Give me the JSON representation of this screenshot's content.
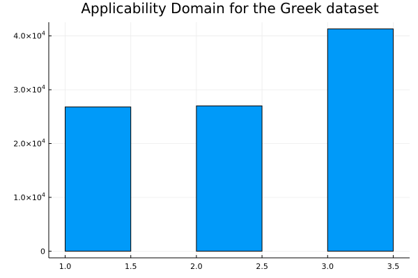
{
  "chart_data": {
    "type": "bar",
    "title": "Applicability Domain for the Greek dataset",
    "xlabel": "",
    "ylabel": "",
    "bars": [
      {
        "x0": 1.0,
        "x1": 1.5,
        "value": 26800
      },
      {
        "x0": 1.5,
        "x1": 2.0,
        "value": 0
      },
      {
        "x0": 2.0,
        "x1": 2.5,
        "value": 27000
      },
      {
        "x0": 2.5,
        "x1": 3.0,
        "value": 0
      },
      {
        "x0": 3.0,
        "x1": 3.5,
        "value": 41300
      }
    ],
    "xlim": [
      0.875,
      3.625
    ],
    "ylim": [
      -1240,
      42540
    ],
    "x_ticks": [
      {
        "value": 1.0,
        "label": "1.0"
      },
      {
        "value": 1.5,
        "label": "1.5"
      },
      {
        "value": 2.0,
        "label": "2.0"
      },
      {
        "value": 2.5,
        "label": "2.5"
      },
      {
        "value": 3.0,
        "label": "3.0"
      },
      {
        "value": 3.5,
        "label": "3.5"
      }
    ],
    "y_ticks": [
      {
        "value": 0,
        "mantissa": "0",
        "exponent": ""
      },
      {
        "value": 10000,
        "mantissa": "1.0×10",
        "exponent": "4"
      },
      {
        "value": 20000,
        "mantissa": "2.0×10",
        "exponent": "4"
      },
      {
        "value": 30000,
        "mantissa": "3.0×10",
        "exponent": "4"
      },
      {
        "value": 40000,
        "mantissa": "4.0×10",
        "exponent": "4"
      }
    ],
    "grid": true,
    "legend": "none",
    "colors": {
      "bar_fill": "#009af9",
      "bar_stroke": "#000000",
      "grid": "#ebebeb",
      "axis": "#000000"
    }
  }
}
